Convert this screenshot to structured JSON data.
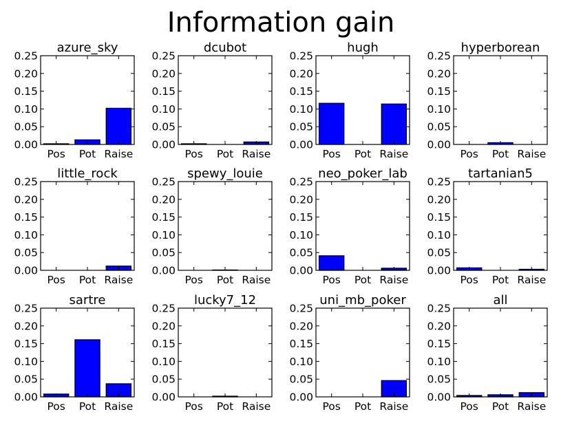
{
  "page": {
    "title": "Information gain"
  },
  "style": {
    "bar_color": "#0000ff",
    "edge_color": "#000000",
    "background": "#ffffff"
  },
  "chart_data": [
    {
      "type": "bar",
      "title": "azure_sky",
      "categories": [
        "Pos",
        "Pot",
        "Raise"
      ],
      "values": [
        0.002,
        0.013,
        0.102
      ],
      "ylim": [
        0,
        0.25
      ],
      "yticks": [
        "0.00",
        "0.05",
        "0.10",
        "0.15",
        "0.20",
        "0.25"
      ],
      "grid": false
    },
    {
      "type": "bar",
      "title": "dcubot",
      "categories": [
        "Pos",
        "Pot",
        "Raise"
      ],
      "values": [
        0.002,
        0.0,
        0.007
      ],
      "ylim": [
        0,
        0.25
      ],
      "yticks": [
        "0.00",
        "0.05",
        "0.10",
        "0.15",
        "0.20",
        "0.25"
      ],
      "grid": false
    },
    {
      "type": "bar",
      "title": "hugh",
      "categories": [
        "Pos",
        "Pot",
        "Raise"
      ],
      "values": [
        0.116,
        0.0,
        0.114
      ],
      "ylim": [
        0,
        0.25
      ],
      "yticks": [
        "0.00",
        "0.05",
        "0.10",
        "0.15",
        "0.20",
        "0.25"
      ],
      "grid": false
    },
    {
      "type": "bar",
      "title": "hyperborean",
      "categories": [
        "Pos",
        "Pot",
        "Raise"
      ],
      "values": [
        0.0,
        0.005,
        0.0
      ],
      "ylim": [
        0,
        0.25
      ],
      "yticks": [
        "0.00",
        "0.05",
        "0.10",
        "0.15",
        "0.20",
        "0.25"
      ],
      "grid": false
    },
    {
      "type": "bar",
      "title": "little_rock",
      "categories": [
        "Pos",
        "Pot",
        "Raise"
      ],
      "values": [
        0.0,
        0.0,
        0.012
      ],
      "ylim": [
        0,
        0.25
      ],
      "yticks": [
        "0.00",
        "0.05",
        "0.10",
        "0.15",
        "0.20",
        "0.25"
      ],
      "grid": false
    },
    {
      "type": "bar",
      "title": "spewy_louie",
      "categories": [
        "Pos",
        "Pot",
        "Raise"
      ],
      "values": [
        0.0,
        0.001,
        0.0
      ],
      "ylim": [
        0,
        0.25
      ],
      "yticks": [
        "0.00",
        "0.05",
        "0.10",
        "0.15",
        "0.20",
        "0.25"
      ],
      "grid": false
    },
    {
      "type": "bar",
      "title": "neo_poker_lab",
      "categories": [
        "Pos",
        "Pot",
        "Raise"
      ],
      "values": [
        0.041,
        0.0,
        0.006
      ],
      "ylim": [
        0,
        0.25
      ],
      "yticks": [
        "0.00",
        "0.05",
        "0.10",
        "0.15",
        "0.20",
        "0.25"
      ],
      "grid": false
    },
    {
      "type": "bar",
      "title": "tartanian5",
      "categories": [
        "Pos",
        "Pot",
        "Raise"
      ],
      "values": [
        0.007,
        0.0,
        0.003
      ],
      "ylim": [
        0,
        0.25
      ],
      "yticks": [
        "0.00",
        "0.05",
        "0.10",
        "0.15",
        "0.20",
        "0.25"
      ],
      "grid": false
    },
    {
      "type": "bar",
      "title": "sartre",
      "categories": [
        "Pos",
        "Pot",
        "Raise"
      ],
      "values": [
        0.008,
        0.161,
        0.037
      ],
      "ylim": [
        0,
        0.25
      ],
      "yticks": [
        "0.00",
        "0.05",
        "0.10",
        "0.15",
        "0.20",
        "0.25"
      ],
      "grid": false
    },
    {
      "type": "bar",
      "title": "lucky7_12",
      "categories": [
        "Pos",
        "Pot",
        "Raise"
      ],
      "values": [
        0.0,
        0.002,
        0.0
      ],
      "ylim": [
        0,
        0.25
      ],
      "yticks": [
        "0.00",
        "0.05",
        "0.10",
        "0.15",
        "0.20",
        "0.25"
      ],
      "grid": false
    },
    {
      "type": "bar",
      "title": "uni_mb_poker",
      "categories": [
        "Pos",
        "Pot",
        "Raise"
      ],
      "values": [
        0.0,
        0.0,
        0.046
      ],
      "ylim": [
        0,
        0.25
      ],
      "yticks": [
        "0.00",
        "0.05",
        "0.10",
        "0.15",
        "0.20",
        "0.25"
      ],
      "grid": false
    },
    {
      "type": "bar",
      "title": "all",
      "categories": [
        "Pos",
        "Pot",
        "Raise"
      ],
      "values": [
        0.004,
        0.006,
        0.012
      ],
      "ylim": [
        0,
        0.25
      ],
      "yticks": [
        "0.00",
        "0.05",
        "0.10",
        "0.15",
        "0.20",
        "0.25"
      ],
      "grid": false
    }
  ]
}
